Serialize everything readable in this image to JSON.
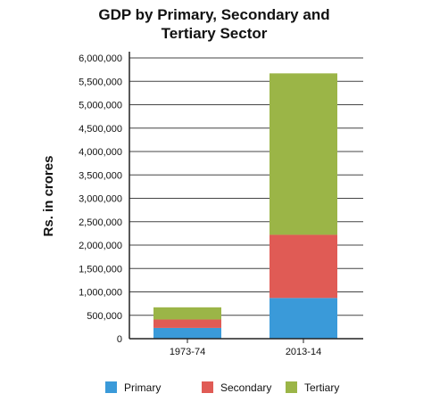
{
  "chart_data": {
    "type": "bar",
    "stacked": true,
    "title": "GDP by Primary, Secondary and Tertiary Sector",
    "title_lines": [
      "GDP by Primary, Secondary and",
      "Tertiary Sector"
    ],
    "xlabel": "",
    "ylabel": "Rs. in crores",
    "ylim": [
      0,
      6000000
    ],
    "yticks": [
      0,
      500000,
      1000000,
      1500000,
      2000000,
      2500000,
      3000000,
      3500000,
      4000000,
      4500000,
      5000000,
      5500000,
      6000000
    ],
    "ytick_labels": [
      "0",
      "500,000",
      "1,000,000",
      "1,500,000",
      "2,000,000",
      "2,500,000",
      "3,000,000",
      "3,500,000",
      "4,000,000",
      "4,500,000",
      "5,000,000",
      "5,500,000",
      "6,000,000"
    ],
    "categories": [
      "1973-74",
      "2013-14"
    ],
    "series": [
      {
        "name": "Primary",
        "color": "#3a9ad9",
        "values": [
          230000,
          870000
        ]
      },
      {
        "name": "Secondary",
        "color": "#e05b55",
        "values": [
          180000,
          1350000
        ]
      },
      {
        "name": "Tertiary",
        "color": "#9bb547",
        "values": [
          260000,
          3450000
        ]
      }
    ],
    "grid": true,
    "legend_position": "bottom"
  }
}
